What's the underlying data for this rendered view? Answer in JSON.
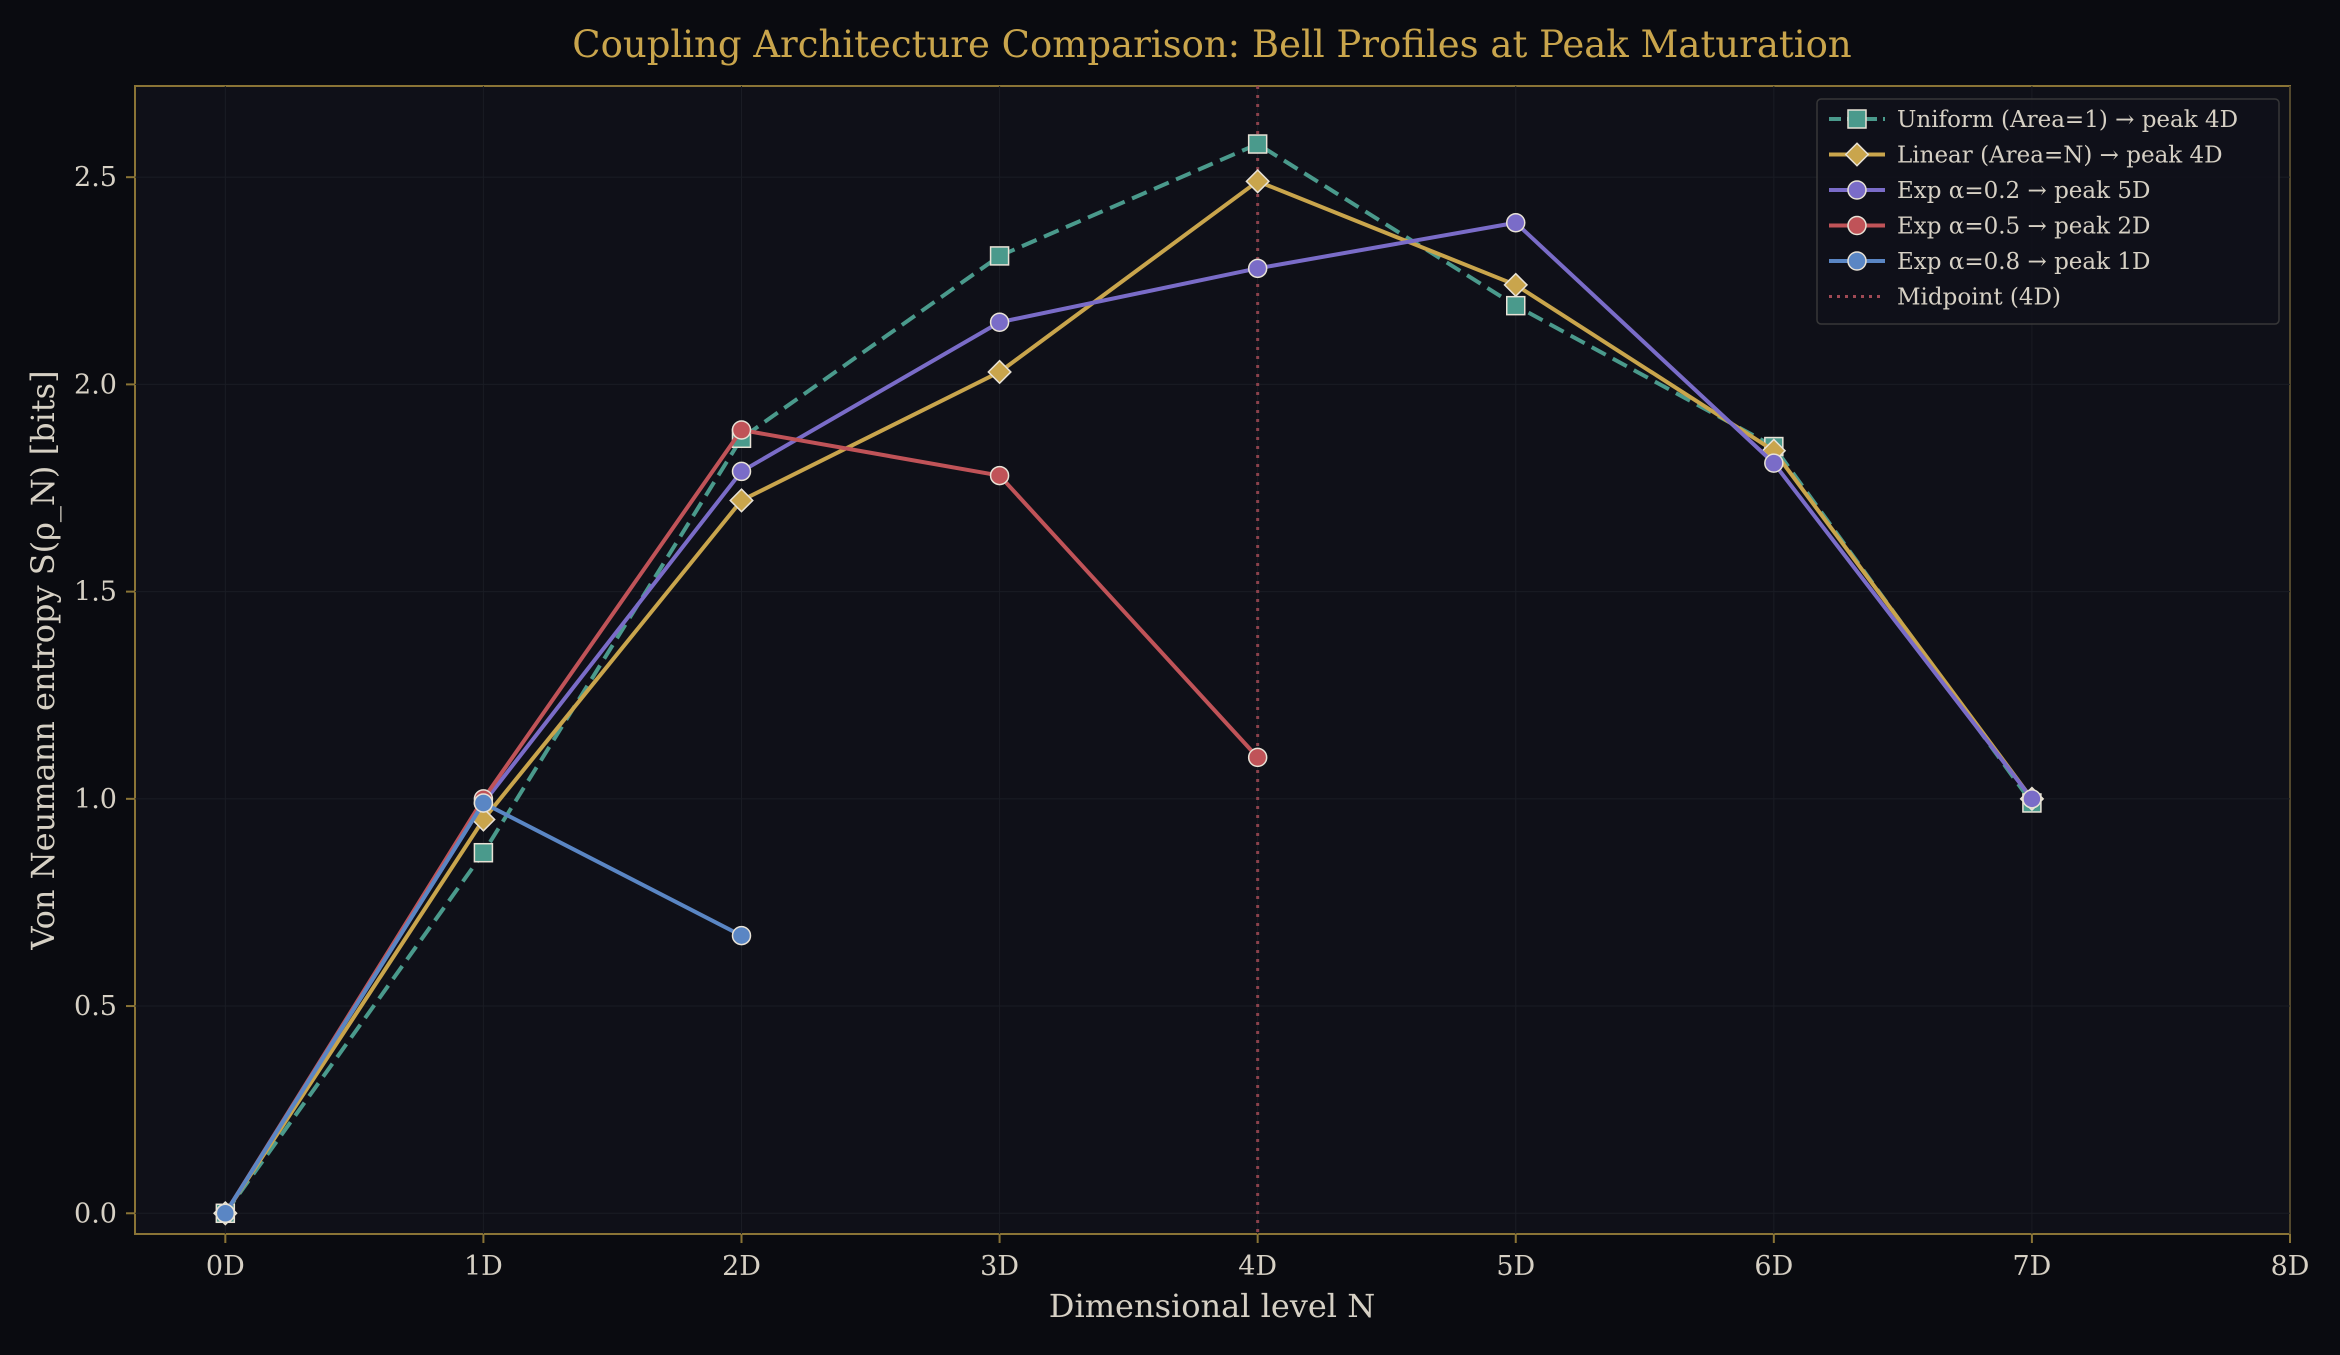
{
  "chart_data": {
    "type": "line",
    "title": "Coupling Architecture Comparison: Bell Profiles at Peak Maturation",
    "xlabel": "Dimensional level  N",
    "ylabel": "Von Neumann entropy  S(ρ_N)  [bits]",
    "x_ticks": [
      "0D",
      "1D",
      "2D",
      "3D",
      "4D",
      "5D",
      "6D",
      "7D",
      "8D"
    ],
    "y_ticks": [
      "0.0",
      "0.5",
      "1.0",
      "1.5",
      "2.0",
      "2.5"
    ],
    "xlim": [
      -0.35,
      8
    ],
    "ylim": [
      -0.05,
      2.72
    ],
    "grid": false,
    "legend_position": "top-right",
    "series": [
      {
        "name": "Uniform (Area=1) → peak 4D",
        "color": "#4a9a8c",
        "marker": "square",
        "dash": "dashed",
        "x": [
          0,
          1,
          2,
          3,
          4,
          5,
          6,
          7
        ],
        "y": [
          0.0,
          0.87,
          1.87,
          2.31,
          2.58,
          2.19,
          1.85,
          0.99
        ]
      },
      {
        "name": "Linear (Area=N) → peak 4D",
        "color": "#c9a54c",
        "marker": "diamond",
        "dash": "solid",
        "x": [
          0,
          1,
          2,
          3,
          4,
          5,
          6,
          7
        ],
        "y": [
          0.0,
          0.95,
          1.72,
          2.03,
          2.49,
          2.24,
          1.84,
          1.0
        ]
      },
      {
        "name": "Exp α=0.2 → peak 5D",
        "color": "#7a6cc8",
        "marker": "circle",
        "dash": "solid",
        "x": [
          0,
          1,
          2,
          3,
          4,
          5,
          6,
          7
        ],
        "y": [
          0.0,
          0.99,
          1.79,
          2.15,
          2.28,
          2.39,
          1.81,
          1.0
        ]
      },
      {
        "name": "Exp α=0.5 → peak 2D",
        "color": "#c05358",
        "marker": "circle",
        "dash": "solid",
        "x": [
          0,
          1,
          2,
          3,
          4
        ],
        "y": [
          0.0,
          1.0,
          1.89,
          1.78,
          1.1
        ]
      },
      {
        "name": "Exp α=0.8 → peak 1D",
        "color": "#5a86c4",
        "marker": "circle",
        "dash": "solid",
        "x": [
          0,
          1,
          2
        ],
        "y": [
          0.0,
          0.99,
          0.67
        ]
      }
    ],
    "vline": {
      "name": "Midpoint (4D)",
      "x": 4,
      "color": "#a04a55",
      "dash": "dotted"
    }
  }
}
